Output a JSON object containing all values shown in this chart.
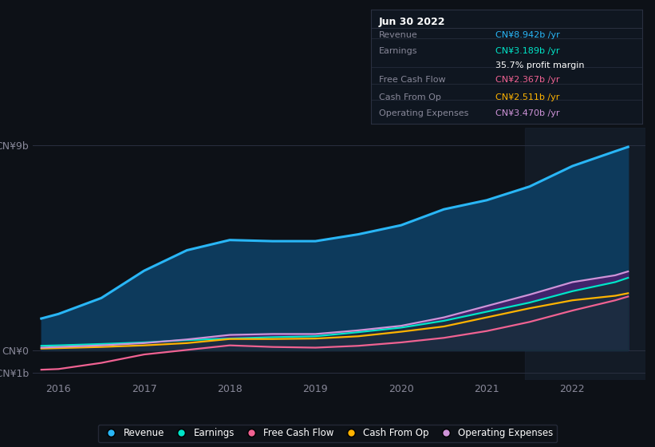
{
  "background_color": "#0d1117",
  "plot_bg_color": "#0d1117",
  "years": [
    2015.8,
    2016.0,
    2016.5,
    2017.0,
    2017.5,
    2018.0,
    2018.5,
    2019.0,
    2019.5,
    2020.0,
    2020.5,
    2021.0,
    2021.5,
    2022.0,
    2022.5,
    2022.65
  ],
  "revenue": [
    1.4,
    1.6,
    2.3,
    3.5,
    4.4,
    4.85,
    4.8,
    4.8,
    5.1,
    5.5,
    6.2,
    6.6,
    7.2,
    8.1,
    8.75,
    8.942
  ],
  "earnings": [
    0.2,
    0.22,
    0.28,
    0.35,
    0.45,
    0.52,
    0.58,
    0.62,
    0.8,
    1.0,
    1.3,
    1.7,
    2.1,
    2.6,
    3.0,
    3.189
  ],
  "free_cash_flow": [
    -0.85,
    -0.82,
    -0.55,
    -0.18,
    0.02,
    0.22,
    0.15,
    0.12,
    0.2,
    0.35,
    0.55,
    0.85,
    1.25,
    1.75,
    2.2,
    2.367
  ],
  "cash_from_op": [
    0.08,
    0.1,
    0.15,
    0.22,
    0.32,
    0.5,
    0.5,
    0.52,
    0.62,
    0.82,
    1.05,
    1.45,
    1.85,
    2.2,
    2.4,
    2.511
  ],
  "operating_exp": [
    0.12,
    0.15,
    0.22,
    0.32,
    0.48,
    0.68,
    0.72,
    0.72,
    0.88,
    1.08,
    1.45,
    1.95,
    2.45,
    3.0,
    3.3,
    3.47
  ],
  "revenue_color": "#29b6f6",
  "earnings_color": "#00e5c8",
  "free_cash_flow_color": "#f06292",
  "cash_from_op_color": "#ffb300",
  "operating_exp_color": "#ce93d8",
  "revenue_fill": "#0d3a5c",
  "earnings_fill": "#0d3030",
  "operating_exp_fill": "#4a2070",
  "ylim_min": -1.3,
  "ylim_max": 9.8,
  "xlim_min": 2015.7,
  "xlim_max": 2022.85,
  "yticks": [
    -1,
    0,
    9
  ],
  "ytick_labels": [
    "-CN¥1b",
    "CN¥0",
    "CN¥9b"
  ],
  "xticks": [
    2016,
    2017,
    2018,
    2019,
    2020,
    2021,
    2022
  ],
  "grid_color": "#2a3040",
  "text_color": "#888899",
  "legend_labels": [
    "Revenue",
    "Earnings",
    "Free Cash Flow",
    "Cash From Op",
    "Operating Expenses"
  ],
  "legend_colors": [
    "#29b6f6",
    "#00e5c8",
    "#f06292",
    "#ffb300",
    "#ce93d8"
  ],
  "info_box": {
    "title": "Jun 30 2022",
    "rows": [
      {
        "label": "Revenue",
        "value": "CN¥8.942b /yr",
        "value_color": "#29b6f6"
      },
      {
        "label": "Earnings",
        "value": "CN¥3.189b /yr",
        "value_color": "#00e5c8"
      },
      {
        "label": "",
        "value": "35.7% profit margin",
        "value_color": "#ffffff"
      },
      {
        "label": "Free Cash Flow",
        "value": "CN¥2.367b /yr",
        "value_color": "#f06292"
      },
      {
        "label": "Cash From Op",
        "value": "CN¥2.511b /yr",
        "value_color": "#ffb300"
      },
      {
        "label": "Operating Expenses",
        "value": "CN¥3.470b /yr",
        "value_color": "#ce93d8"
      }
    ],
    "bg_color": "#0f1620",
    "border_color": "#2a3040",
    "title_color": "#ffffff",
    "label_color": "#888899"
  },
  "shaded_region_start": 2021.45,
  "shaded_region_color": "#1a2535"
}
